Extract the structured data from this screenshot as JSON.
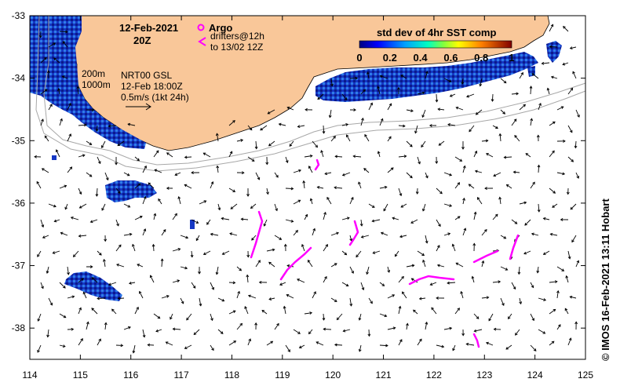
{
  "map": {
    "date_label": "12-Feb-2021",
    "time_label": "20Z",
    "argo_label": "Argo",
    "drifters_label": "drifters@12h",
    "drifters_label2": "to 13/02 12Z",
    "isobath_200": "200m",
    "isobath_1000": "1000m",
    "product_label": "NRT00 GSL",
    "product_time": "12-Feb 18:00Z",
    "scale_label": "0.5m/s (1kt 24h)",
    "colorbar_title": "std dev of 4hr SST comp",
    "colorbar_ticks": [
      "0",
      "0.2",
      "0.4",
      "0.6",
      "0.8",
      "1"
    ],
    "credit": "© IMOS 16-Feb-2021 13:11 Hobart",
    "x_ticks": [
      "114",
      "115",
      "116",
      "117",
      "118",
      "119",
      "120",
      "121",
      "122",
      "123",
      "124",
      "125"
    ],
    "y_ticks": [
      "-33",
      "-34",
      "-35",
      "-36",
      "-37",
      "-38"
    ],
    "lon_range": [
      114,
      125
    ],
    "lat_range": [
      -38.5,
      -33
    ],
    "colors": {
      "land": "#f9c799",
      "drifter": "#ff00ff",
      "isobath": "#a8a8a8",
      "sst_dark": "#0a1a8c",
      "sst_mid": "#1a5be0",
      "sst_light": "#3fb0e8"
    }
  }
}
